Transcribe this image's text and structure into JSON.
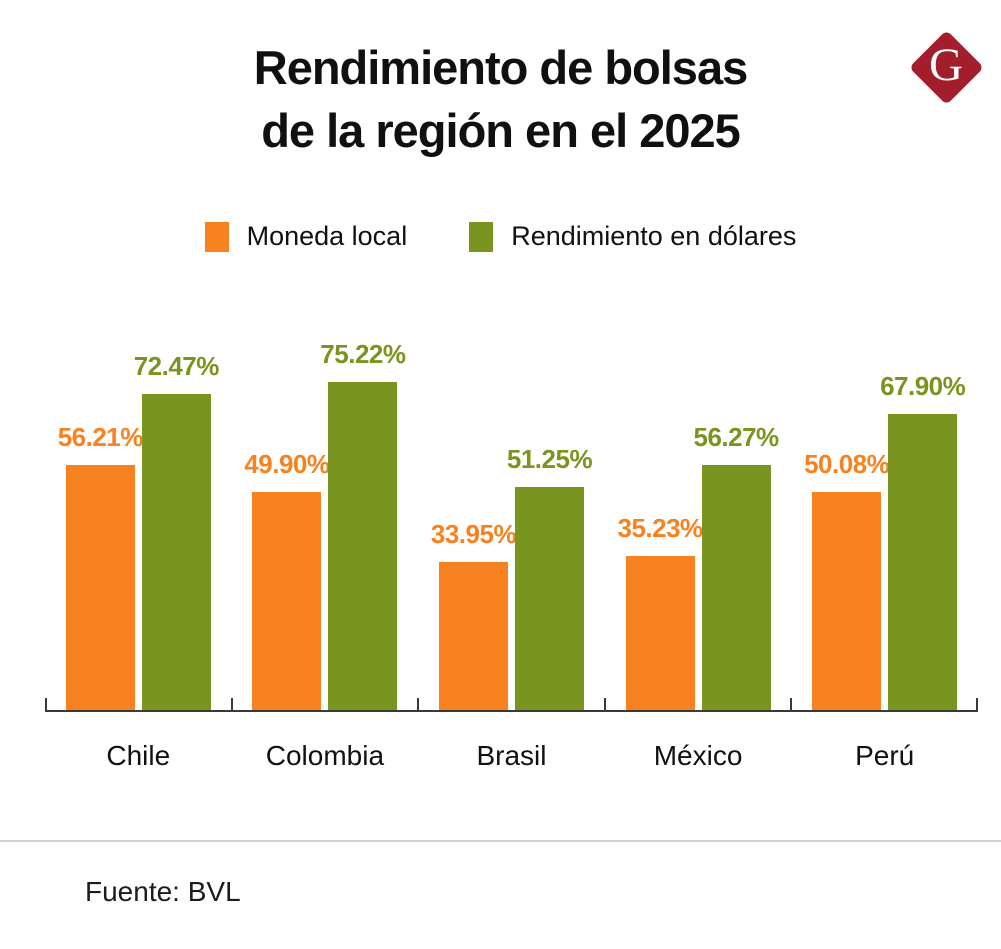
{
  "header": {
    "title_line1": "Rendimiento de bolsas",
    "title_line2": "de la región en el 2025",
    "logo_letter": "G"
  },
  "legend": {
    "items": [
      {
        "label": "Moneda local",
        "color": "#F8821F"
      },
      {
        "label": "Rendimiento en dólares",
        "color": "#7A9420"
      }
    ]
  },
  "chart_data": {
    "type": "bar",
    "categories": [
      "Chile",
      "Colombia",
      "Brasil",
      "México",
      "Perú"
    ],
    "series": [
      {
        "name": "Moneda local",
        "color": "#F8821F",
        "values": [
          56.21,
          49.9,
          33.95,
          35.23,
          50.08
        ],
        "labels": [
          "56.21%",
          "49.90%",
          "33.95%",
          "35.23%",
          "50.08%"
        ]
      },
      {
        "name": "Rendimiento en dólares",
        "color": "#7A9420",
        "values": [
          72.47,
          75.22,
          51.25,
          56.27,
          67.9
        ],
        "labels": [
          "72.47%",
          "75.22%",
          "51.25%",
          "56.27%",
          "67.90%"
        ]
      }
    ],
    "title": "Rendimiento de bolsas de la región en el 2025",
    "xlabel": "",
    "ylabel": "",
    "ylim": [
      0,
      85
    ],
    "grid": false,
    "legend_position": "top",
    "value_labels_shown": true
  },
  "footer": {
    "source_label": "Fuente: BVL"
  },
  "colors": {
    "orange": "#F8821F",
    "green": "#7A9420",
    "logo_red": "#A31E2D",
    "axis": "#3a3a3a",
    "divider": "#cfcfcf",
    "title_text": "#101010"
  }
}
